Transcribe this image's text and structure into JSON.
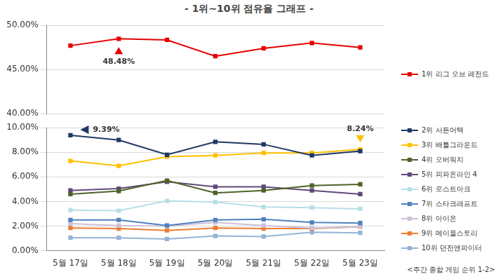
{
  "chart_data": [
    {
      "type": "line",
      "title": "- 1위~10위 점유율 그래프 -",
      "categories": [
        "5월 17일",
        "5월 18일",
        "5월 19일",
        "5월 20일",
        "5월 21일",
        "5월 22일",
        "5월 23일"
      ],
      "series": [
        {
          "name": "1위 리그 오브 레전드",
          "color": "#e60000",
          "values": [
            47.7,
            48.48,
            48.35,
            46.5,
            47.4,
            48.0,
            47.5
          ]
        }
      ],
      "ylim": [
        40,
        50
      ],
      "yticks": [
        {
          "value": 40,
          "label": "40.00%"
        },
        {
          "value": 45,
          "label": "45.00%"
        },
        {
          "value": 50,
          "label": "50.00%"
        }
      ],
      "grid": true,
      "legend": "right",
      "marker": "square",
      "tick_labels": "y",
      "annotations": [
        {
          "text": "48.48%",
          "series": "1위 리그 오브 레전드",
          "category": "5월 18일"
        }
      ]
    },
    {
      "type": "line",
      "categories": [
        "5월 17일",
        "5월 18일",
        "5월 19일",
        "5월 20일",
        "5월 21일",
        "5월 22일",
        "5월 23일"
      ],
      "series": [
        {
          "name": "2위 서든어택",
          "color": "#1f3864",
          "values": [
            9.39,
            9.0,
            7.8,
            8.85,
            8.65,
            7.75,
            8.1
          ]
        },
        {
          "name": "3위 배틀그라운드",
          "color": "#ffc000",
          "values": [
            7.3,
            6.9,
            7.65,
            7.75,
            7.95,
            7.95,
            8.24
          ]
        },
        {
          "name": "4위 오버워치",
          "color": "#4f6228",
          "values": [
            4.6,
            4.85,
            5.7,
            4.7,
            4.9,
            5.3,
            5.4
          ]
        },
        {
          "name": "5위 피파온라인 4",
          "color": "#60497a",
          "values": [
            4.9,
            5.05,
            5.6,
            5.2,
            5.2,
            4.9,
            4.6
          ]
        },
        {
          "name": "6위 로스트아크",
          "color": "#b7dee8",
          "values": [
            3.3,
            3.25,
            4.05,
            3.95,
            3.55,
            3.5,
            3.4
          ]
        },
        {
          "name": "7위 스타크래프트",
          "color": "#4f81bd",
          "values": [
            2.5,
            2.5,
            2.05,
            2.5,
            2.55,
            2.3,
            2.25
          ]
        },
        {
          "name": "8위 아이온",
          "color": "#ccc0da",
          "values": [
            2.2,
            2.05,
            2.0,
            2.3,
            2.05,
            1.85,
            1.95
          ]
        },
        {
          "name": "9위 메이플스토리",
          "color": "#ed7d31",
          "values": [
            1.85,
            1.8,
            1.65,
            1.85,
            1.8,
            1.8,
            1.95
          ]
        },
        {
          "name": "10위 던전앤파이터",
          "color": "#95b3d7",
          "values": [
            1.05,
            1.05,
            0.95,
            1.2,
            1.15,
            1.5,
            1.45
          ]
        }
      ],
      "ylim": [
        0,
        10
      ],
      "yticks": [
        {
          "value": 0,
          "label": "0.00%"
        },
        {
          "value": 2,
          "label": "2.00%"
        },
        {
          "value": 4,
          "label": "4.00%"
        },
        {
          "value": 6,
          "label": "6.00%"
        },
        {
          "value": 8,
          "label": "8.00%"
        },
        {
          "value": 10,
          "label": "10.00%"
        }
      ],
      "grid": true,
      "legend": "right",
      "marker": "square",
      "annotations": [
        {
          "text": "9.39%",
          "series": "2위 서든어택",
          "category": "5월 17일"
        },
        {
          "text": "8.24%",
          "series": "3위 배틀그라운드",
          "category": "5월 23일"
        }
      ],
      "note": "<주간 종합 게임 순위 1-2>"
    }
  ]
}
